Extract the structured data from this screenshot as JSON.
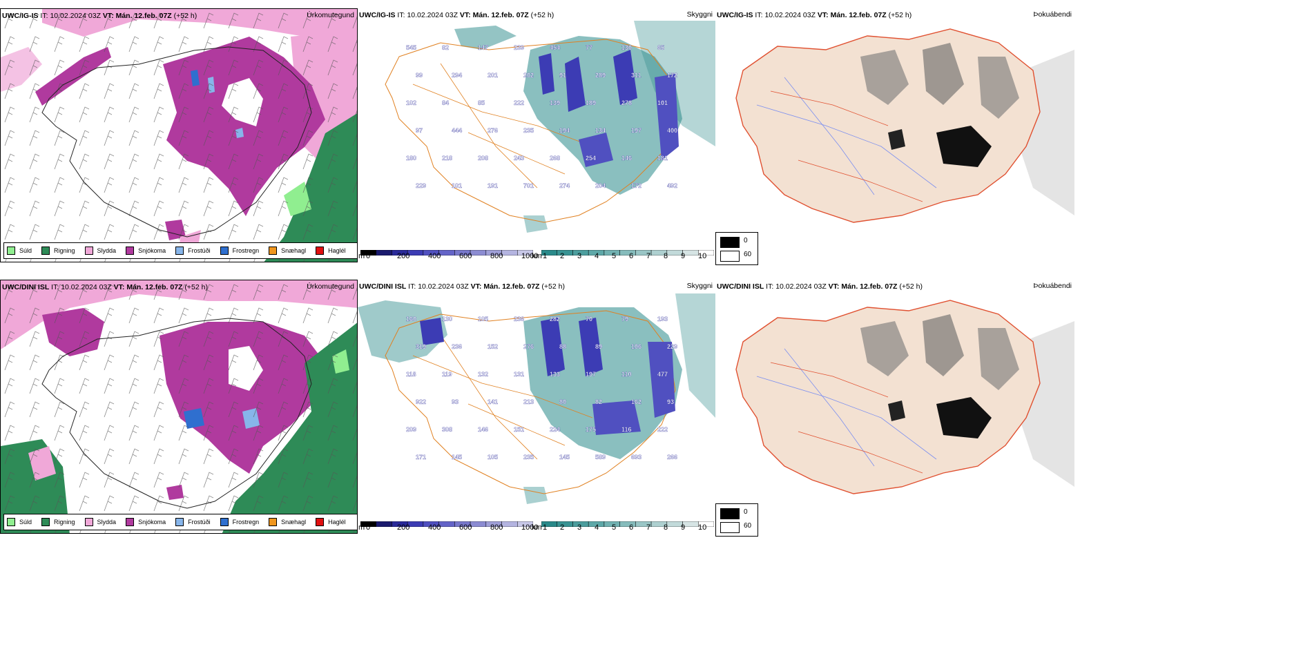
{
  "rows": [
    {
      "model": "UWC/IG-IS",
      "it_label": "IT:",
      "it_value": "10.02.2024 03Z",
      "vt_label": "VT:",
      "vt_value": "Mán. 12.feb. 07Z",
      "lead": "(+52 h)"
    },
    {
      "model": "UWC/DINI ISL",
      "it_label": "IT:",
      "it_value": "10.02.2024 03Z",
      "vt_label": "VT:",
      "vt_value": "Mán. 12.feb. 07Z",
      "lead": "(+52 h)"
    }
  ],
  "panel_titles": {
    "precip_type": "Úrkomutegund",
    "visibility": "Skyggni",
    "fog": "Þokuábendi"
  },
  "precip_legend": [
    {
      "label": "Súld",
      "color": "#90ee90"
    },
    {
      "label": "Rigning",
      "color": "#2e8b57"
    },
    {
      "label": "Slydda",
      "color": "#f0a8d8"
    },
    {
      "label": "Snjókoma",
      "color": "#b03a9e"
    },
    {
      "label": "Frostúði",
      "color": "#87b5ea"
    },
    {
      "label": "Frostregn",
      "color": "#2f6fcf"
    },
    {
      "label": "Snæhagl",
      "color": "#f0961e"
    },
    {
      "label": "Haglél",
      "color": "#e01010"
    }
  ],
  "elevation_bar": {
    "unit": "m",
    "ticks": [
      "0",
      "200",
      "400",
      "600",
      "800",
      "1000"
    ],
    "colors": [
      "#000000",
      "#1a1a6e",
      "#2a2a9a",
      "#3c3cb4",
      "#5050c0",
      "#6464c8",
      "#7878cc",
      "#8c8cd2",
      "#a0a0d8",
      "#b4b4e0",
      "#c8c8e8"
    ]
  },
  "visibility_bar": {
    "unit": "km",
    "ticks": [
      "1",
      "2",
      "3",
      "4",
      "5",
      "6",
      "7",
      "8",
      "9",
      "10"
    ],
    "colors": [
      "#2a8a8a",
      "#3a9494",
      "#4c9e9e",
      "#5ea8a8",
      "#72b2b2",
      "#86bcbc",
      "#9ac6c6",
      "#aed0d0",
      "#c2dada",
      "#d6e4e4",
      "#ffffff"
    ]
  },
  "fog_legend": [
    {
      "label": "0",
      "color": "#000000"
    },
    {
      "label": "60",
      "color": "#ffffff"
    }
  ],
  "elevation_labels_top": [
    "545",
    "82",
    "147",
    "239",
    "454",
    "77",
    "130",
    "65",
    "99",
    "294",
    "201",
    "202",
    "91",
    "289",
    "311",
    "172",
    "102",
    "84",
    "85",
    "222",
    "139",
    "189",
    "278",
    "101",
    "97",
    "444",
    "276",
    "235",
    "194",
    "134",
    "197",
    "400",
    "180",
    "218",
    "208",
    "243",
    "268",
    "254",
    "146",
    "181",
    "229",
    "101",
    "191",
    "701",
    "274",
    "204",
    "172",
    "492"
  ],
  "elevation_labels_bottom": [
    "160",
    "130",
    "105",
    "236",
    "282",
    "70",
    "79",
    "193",
    "319",
    "236",
    "152",
    "276",
    "88",
    "89",
    "106",
    "229",
    "118",
    "119",
    "132",
    "131",
    "133",
    "197",
    "110",
    "477",
    "922",
    "93",
    "141",
    "213",
    "80",
    "82",
    "162",
    "93",
    "209",
    "308",
    "146",
    "151",
    "224",
    "175",
    "116",
    "222",
    "171",
    "145",
    "105",
    "235",
    "145",
    "589",
    "693",
    "266"
  ]
}
